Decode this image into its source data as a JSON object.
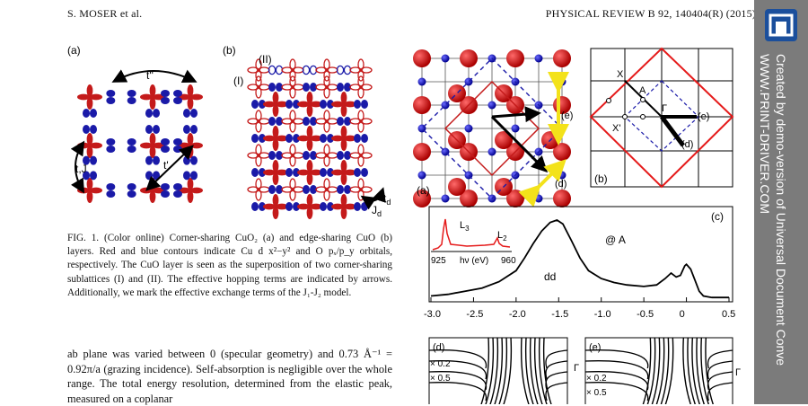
{
  "header": {
    "left": "S. MOSER et al.",
    "right": "PHYSICAL REVIEW B 92, 140404(R) (2015)"
  },
  "fig_left": {
    "panel_a": "(a)",
    "panel_b": "(b)",
    "t_double": "t''",
    "t_prime": "t'",
    "tJ": "t,J",
    "sub_I": "(I)",
    "sub_II": "(II)",
    "td": "t",
    "td_sub": "d",
    "Jd": "J",
    "Jd_sub": "d"
  },
  "fig_right": {
    "lattice_label": "(a)",
    "arrow_e": "(e)",
    "arrow_d": "(d)",
    "bz_label": "(b)",
    "bz_X": "X",
    "bz_A": "A",
    "bz_Gamma": "Γ",
    "bz_Xp": "X'",
    "bz_e": "(e)",
    "bz_d": "(d)",
    "spec_label": "(c)",
    "at_A": "@ A",
    "dd": "dd",
    "inset_L3": "L",
    "inset_L3_sub": "3",
    "inset_L2": "L",
    "inset_L2_sub": "2",
    "inset_x_left": "925",
    "inset_x_mid": "hν (eV)",
    "inset_x_right": "960",
    "x_ticks": [
      "-3.0",
      "-2.5",
      "-2.0",
      "-1.5",
      "-1.0",
      "-0.5",
      "0",
      "0.5"
    ],
    "d_label": "(d)",
    "e_label": "(e)",
    "d_x02": "× 0.2",
    "d_x05": "× 0.5",
    "e_x02": "× 0.2",
    "e_x05": "× 0.5",
    "gamma_d": "Γ",
    "gamma_e": "Γ"
  },
  "caption": "FIG. 1. (Color online) Corner-sharing CuO₂ (a) and edge-sharing CuO (b) layers. Red and blue contours indicate Cu d x²−y² and O pₓ/p_y orbitals, respectively. The CuO layer is seen as the superposition of two corner-sharing sublattices (I) and (II). The effective hopping terms are indicated by arrows. Additionally, we mark the effective exchange terms of the J₁-J₂ model.",
  "body": "ab plane was varied between 0 (specular geometry) and 0.73 Å⁻¹ = 0.92π/a (grazing incidence). Self-absorption is negligible over the whole range. The total energy resolution, determined from the elastic peak, measured on a coplanar",
  "sidebar": {
    "line1": "Created by demo-version of Universal Document Conve",
    "line2": "WWW.PRINT-DRIVER.COM"
  },
  "colors": {
    "cu": "#c41a1a",
    "o": "#1a1aa8",
    "sidebar": "#7b7b7b",
    "accent_yellow": "#f3e21a"
  }
}
